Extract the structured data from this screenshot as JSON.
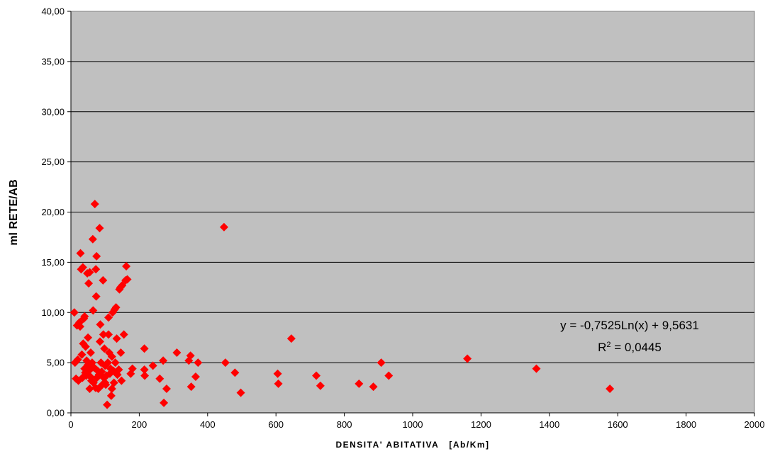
{
  "chart_data": {
    "type": "scatter",
    "xlabel": "DENSITA' ABITATIVA   [Ab/Km]",
    "ylabel": "ml RETE/AB",
    "xlim": [
      0,
      2000
    ],
    "ylim": [
      0,
      40
    ],
    "x_ticks": [
      0,
      200,
      400,
      600,
      800,
      1000,
      1200,
      1400,
      1600,
      1800,
      2000
    ],
    "y_ticks": [
      "0,00",
      "5,00",
      "10,00",
      "15,00",
      "20,00",
      "25,00",
      "30,00",
      "35,00",
      "40,00"
    ],
    "grid": "horizontal",
    "plot_background": "#c0c0c0",
    "marker": "diamond",
    "marker_color": "#ff0000",
    "trendline": {
      "type": "logarithmic",
      "a": -0.7525,
      "b": 9.5631,
      "equation": "y = -0,7525Ln(x) + 9,5631",
      "r2_label": "R",
      "r2_sup": "2",
      "r2_value": " = 0,0445"
    },
    "series": [
      {
        "points": [
          [
            10,
            10.0
          ],
          [
            12,
            5.0
          ],
          [
            15,
            3.4
          ],
          [
            18,
            8.7
          ],
          [
            20,
            5.3
          ],
          [
            22,
            3.2
          ],
          [
            25,
            9.0
          ],
          [
            27,
            8.6
          ],
          [
            28,
            15.9
          ],
          [
            30,
            14.3
          ],
          [
            32,
            5.8
          ],
          [
            34,
            3.5
          ],
          [
            35,
            14.5
          ],
          [
            36,
            6.9
          ],
          [
            38,
            9.4
          ],
          [
            40,
            9.6
          ],
          [
            40,
            4.4
          ],
          [
            42,
            4.0
          ],
          [
            43,
            6.6
          ],
          [
            45,
            3.7
          ],
          [
            46,
            5.2
          ],
          [
            48,
            13.9
          ],
          [
            50,
            7.5
          ],
          [
            50,
            4.8
          ],
          [
            52,
            12.9
          ],
          [
            53,
            4.2
          ],
          [
            55,
            14.0
          ],
          [
            55,
            2.4
          ],
          [
            57,
            3.6
          ],
          [
            58,
            6.0
          ],
          [
            60,
            4.6
          ],
          [
            60,
            3.2
          ],
          [
            62,
            5.0
          ],
          [
            64,
            17.3
          ],
          [
            65,
            10.2
          ],
          [
            66,
            3.0
          ],
          [
            68,
            4.5
          ],
          [
            70,
            20.8
          ],
          [
            72,
            2.5
          ],
          [
            73,
            14.3
          ],
          [
            74,
            11.6
          ],
          [
            75,
            15.6
          ],
          [
            76,
            3.5
          ],
          [
            78,
            4.2
          ],
          [
            80,
            2.4
          ],
          [
            82,
            3.8
          ],
          [
            84,
            18.4
          ],
          [
            85,
            7.1
          ],
          [
            86,
            8.8
          ],
          [
            88,
            5.0
          ],
          [
            90,
            4.1
          ],
          [
            92,
            2.8
          ],
          [
            94,
            13.2
          ],
          [
            95,
            7.8
          ],
          [
            96,
            3.5
          ],
          [
            98,
            6.4
          ],
          [
            100,
            4.7
          ],
          [
            100,
            3.0
          ],
          [
            102,
            2.8
          ],
          [
            104,
            3.7
          ],
          [
            106,
            0.8
          ],
          [
            108,
            5.0
          ],
          [
            110,
            7.8
          ],
          [
            110,
            9.5
          ],
          [
            112,
            6.0
          ],
          [
            114,
            3.9
          ],
          [
            116,
            4.4
          ],
          [
            118,
            1.7
          ],
          [
            120,
            2.4
          ],
          [
            120,
            5.6
          ],
          [
            122,
            10.0
          ],
          [
            124,
            4.2
          ],
          [
            126,
            3.0
          ],
          [
            128,
            10.3
          ],
          [
            130,
            5.0
          ],
          [
            132,
            10.5
          ],
          [
            134,
            7.4
          ],
          [
            136,
            3.8
          ],
          [
            140,
            4.3
          ],
          [
            142,
            12.3
          ],
          [
            145,
            12.5
          ],
          [
            146,
            6.0
          ],
          [
            148,
            3.2
          ],
          [
            150,
            12.7
          ],
          [
            155,
            7.8
          ],
          [
            160,
            13.2
          ],
          [
            162,
            14.6
          ],
          [
            165,
            13.3
          ],
          [
            175,
            3.9
          ],
          [
            180,
            4.4
          ],
          [
            215,
            6.4
          ],
          [
            215,
            4.3
          ],
          [
            216,
            3.7
          ],
          [
            240,
            4.7
          ],
          [
            260,
            3.4
          ],
          [
            270,
            5.2
          ],
          [
            272,
            1.0
          ],
          [
            280,
            2.4
          ],
          [
            310,
            6.0
          ],
          [
            345,
            5.2
          ],
          [
            350,
            5.7
          ],
          [
            352,
            2.6
          ],
          [
            365,
            3.6
          ],
          [
            372,
            5.0
          ],
          [
            448,
            18.5
          ],
          [
            452,
            5.0
          ],
          [
            480,
            4.0
          ],
          [
            497,
            2.0
          ],
          [
            605,
            3.9
          ],
          [
            607,
            2.9
          ],
          [
            645,
            7.4
          ],
          [
            718,
            3.7
          ],
          [
            730,
            2.7
          ],
          [
            843,
            2.9
          ],
          [
            885,
            2.6
          ],
          [
            908,
            5.0
          ],
          [
            930,
            3.7
          ],
          [
            1160,
            5.4
          ],
          [
            1362,
            4.4
          ],
          [
            1577,
            2.4
          ]
        ]
      }
    ]
  }
}
